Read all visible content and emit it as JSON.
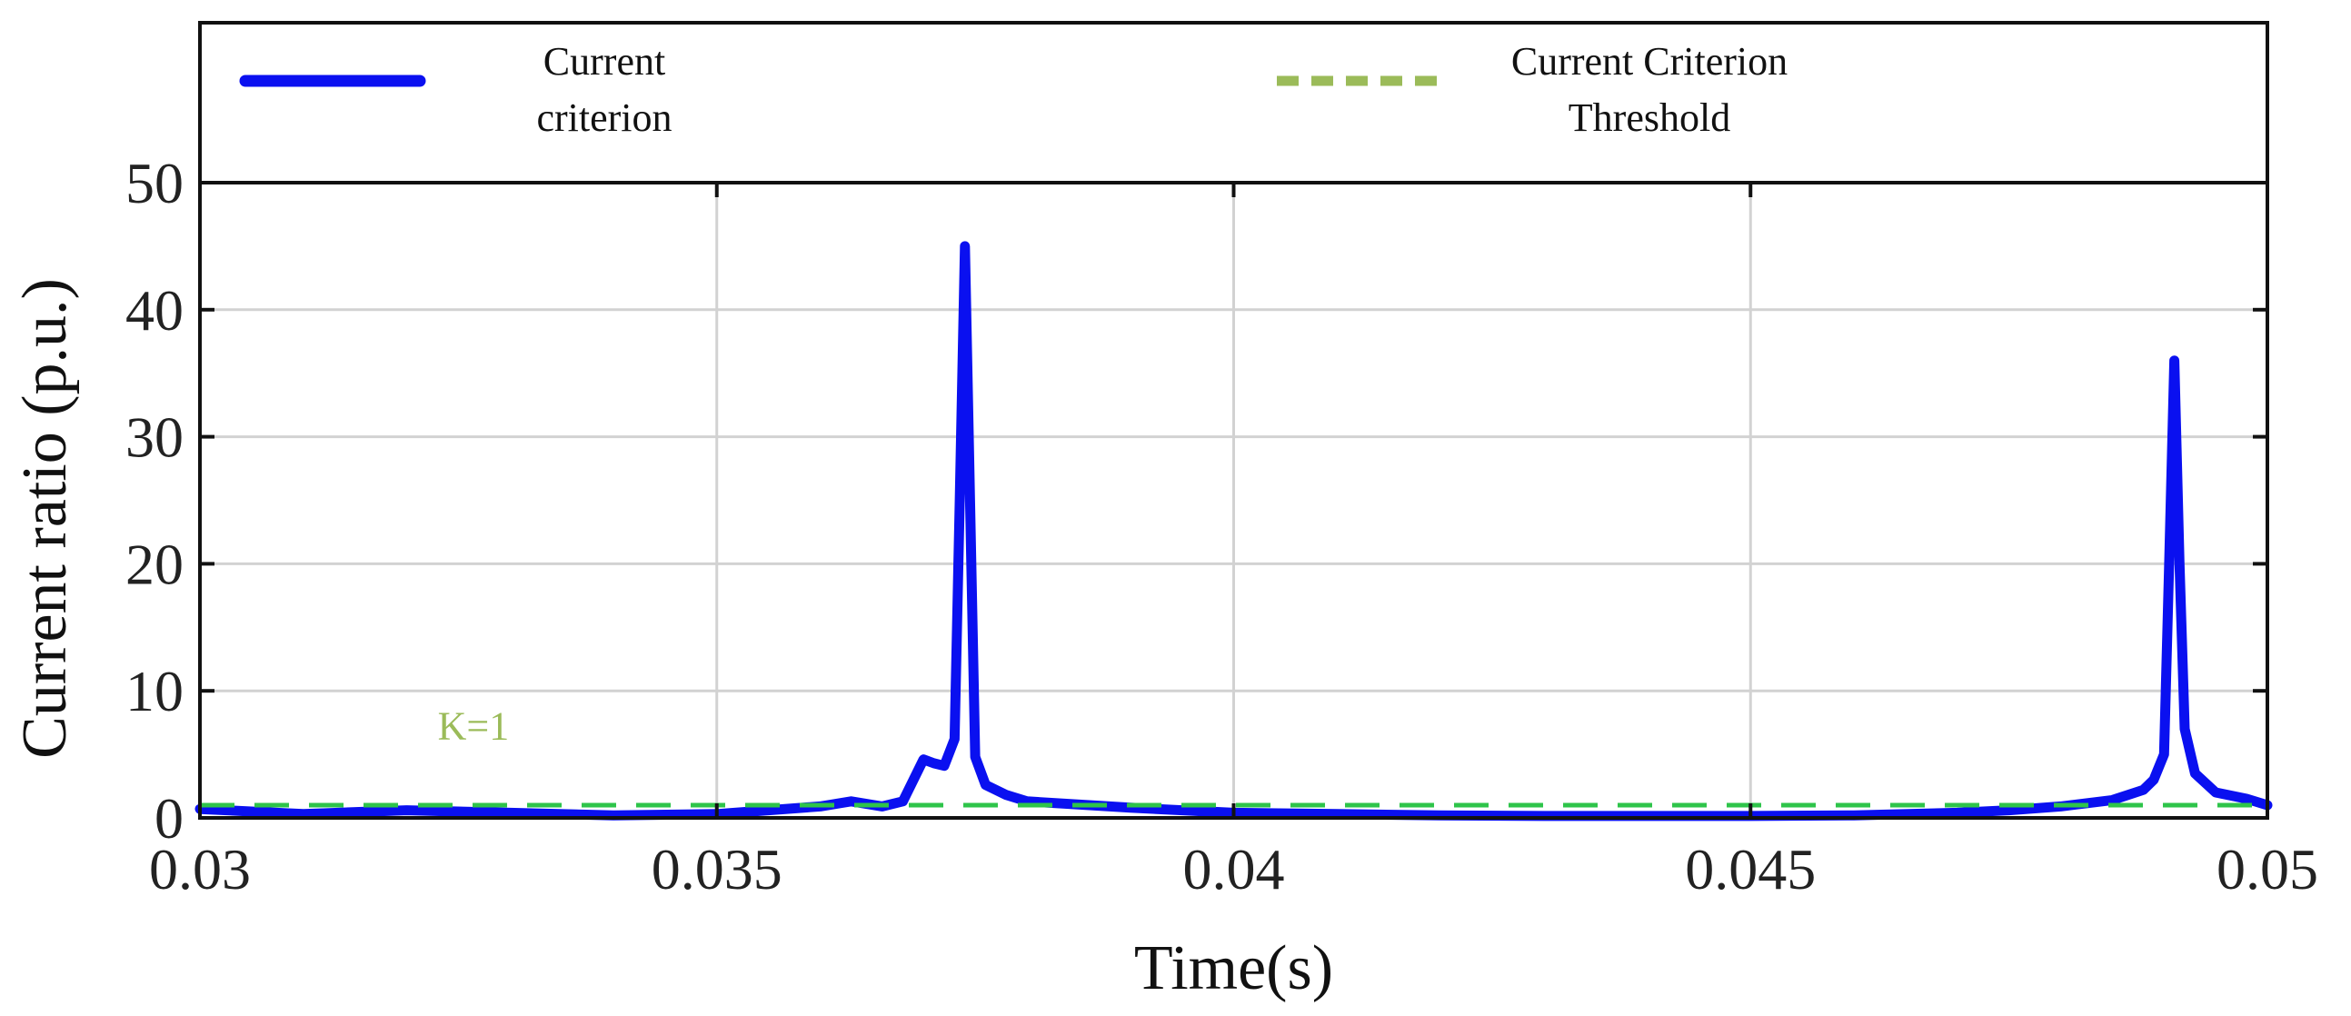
{
  "chart_data": {
    "type": "line",
    "xlabel": "Time(s)",
    "ylabel": "Current ratio (p.u.)",
    "xlim": [
      0.03,
      0.05
    ],
    "ylim": [
      0,
      50
    ],
    "xticks": [
      0.03,
      0.035,
      0.04,
      0.045,
      0.05
    ],
    "xtick_labels": [
      "0.03",
      "0.035",
      "0.04",
      "0.045",
      "0.05"
    ],
    "yticks": [
      0,
      10,
      20,
      30,
      40,
      50
    ],
    "ytick_labels": [
      "0",
      "10",
      "20",
      "30",
      "40",
      "50"
    ],
    "grid": true,
    "legend_position": "top, above plot",
    "annotation": {
      "text": "K=1",
      "x": 0.0323,
      "y": 6.2,
      "color": "#9bbb59"
    },
    "series": [
      {
        "name": "Current\ncriterion",
        "color": "#0a10f0",
        "style": "solid",
        "x": [
          0.03,
          0.031,
          0.032,
          0.033,
          0.034,
          0.035,
          0.0355,
          0.036,
          0.0363,
          0.0366,
          0.0368,
          0.037,
          0.0371,
          0.0372,
          0.0373,
          0.03735,
          0.0374,
          0.03745,
          0.0375,
          0.0376,
          0.0378,
          0.038,
          0.039,
          0.04,
          0.041,
          0.042,
          0.043,
          0.044,
          0.045,
          0.046,
          0.047,
          0.0475,
          0.048,
          0.0485,
          0.0488,
          0.0489,
          0.049,
          0.04905,
          0.0491,
          0.04915,
          0.0492,
          0.0493,
          0.0495,
          0.0498,
          0.05
        ],
        "y": [
          0.7,
          0.3,
          0.6,
          0.4,
          0.2,
          0.3,
          0.6,
          0.9,
          1.3,
          0.9,
          1.3,
          4.6,
          4.3,
          4.1,
          6.2,
          25.0,
          45.0,
          25.0,
          4.8,
          2.6,
          1.8,
          1.3,
          0.8,
          0.4,
          0.3,
          0.2,
          0.15,
          0.15,
          0.15,
          0.2,
          0.4,
          0.6,
          0.9,
          1.4,
          2.2,
          3.0,
          5.0,
          20.0,
          36.0,
          20.0,
          7.0,
          3.5,
          2.0,
          1.5,
          1.0
        ]
      },
      {
        "name": "Current Criterion\nThreshold",
        "color": "#2ec44a",
        "legend_color": "#9bbb59",
        "style": "dashed",
        "x": [
          0.03,
          0.05
        ],
        "y": [
          1,
          1
        ]
      }
    ]
  }
}
